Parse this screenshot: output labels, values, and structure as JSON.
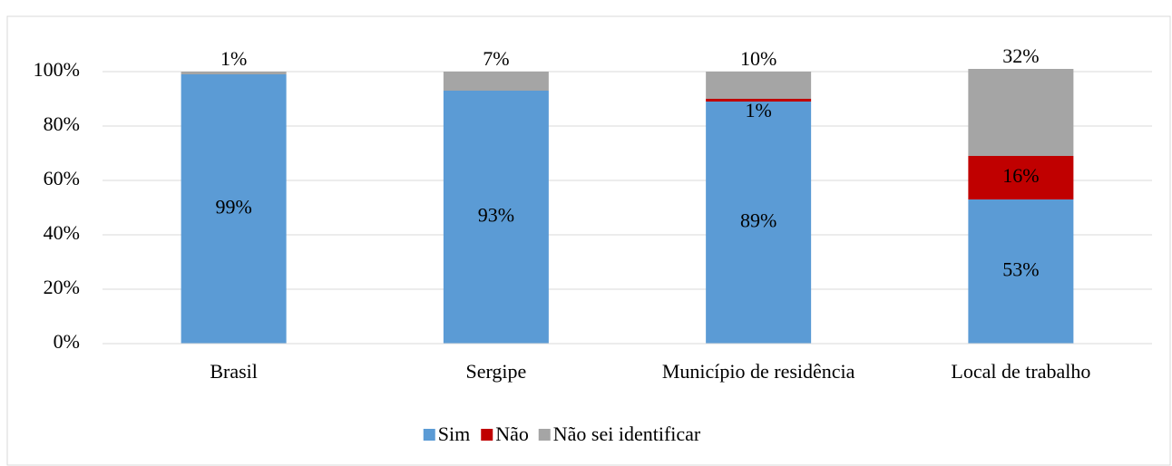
{
  "chart_data": {
    "type": "stacked_bar",
    "categories": [
      "Brasil",
      "Sergipe",
      "Município de residência",
      "Local de trabalho"
    ],
    "series": [
      {
        "name": "Sim",
        "color": "#5b9bd5",
        "values": [
          99,
          93,
          89,
          53
        ],
        "value_labels": [
          "99%",
          "93%",
          "89%",
          "53%"
        ]
      },
      {
        "name": "Não",
        "color": "#c00000",
        "values": [
          0,
          0,
          1,
          16
        ],
        "value_labels": [
          null,
          null,
          "1%",
          "16%"
        ]
      },
      {
        "name": "Não sei identificar",
        "color": "#a5a5a5",
        "values": [
          1,
          7,
          10,
          32
        ],
        "value_labels": [
          "1%",
          "7%",
          "10%",
          "32%"
        ]
      }
    ],
    "ylim": [
      0,
      100
    ],
    "yticks": [
      {
        "value": 0,
        "label": "0%"
      },
      {
        "value": 20,
        "label": "20%"
      },
      {
        "value": 40,
        "label": "40%"
      },
      {
        "value": 60,
        "label": "60%"
      },
      {
        "value": 80,
        "label": "80%"
      },
      {
        "value": 100,
        "label": "100%"
      }
    ],
    "grid": true,
    "legend": "bottom"
  }
}
